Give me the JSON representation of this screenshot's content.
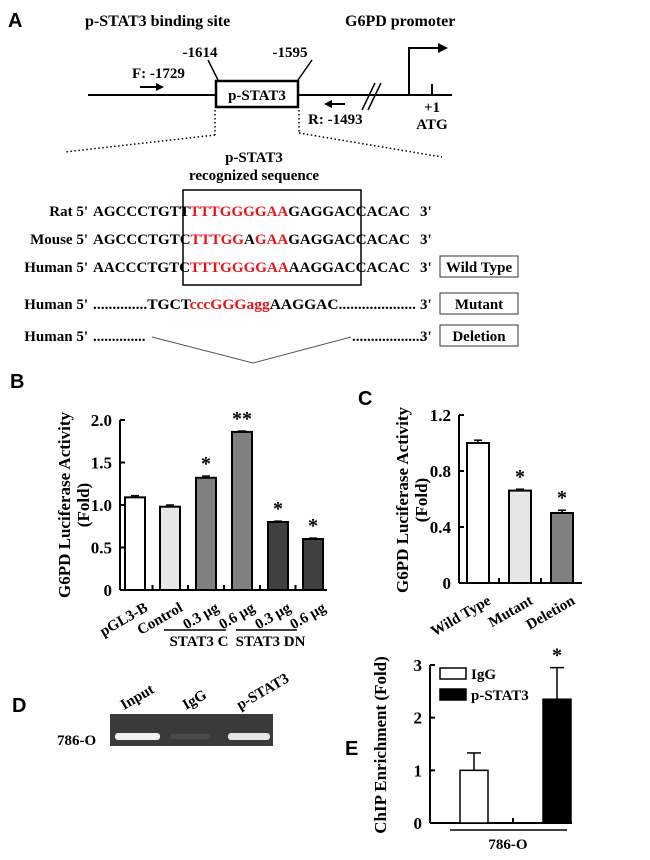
{
  "panel_a": {
    "letter": "A",
    "binding_site_title": "p-STAT3 binding site",
    "promoter_title": "G6PD promoter",
    "pos_start": "-1614",
    "pos_end": "-1595",
    "forward_primer": "F: -1729",
    "reverse_primer": "R: -1493",
    "box_label": "p-STAT3",
    "tss_label": "+1",
    "atg_label": "ATG",
    "seq_title_1": "p-STAT3",
    "seq_title_2": "recognized sequence",
    "red_color": "#e8141b",
    "rows": [
      {
        "species": "Rat 5'",
        "end": "3'",
        "segments": [
          {
            "t": "AGCCCTGTT",
            "red": false
          },
          {
            "t": "TTTGGGGAA",
            "red": true
          },
          {
            "t": "GAGGACCACAC",
            "red": false
          }
        ],
        "tag": ""
      },
      {
        "species": "Mouse 5'",
        "end": "3'",
        "segments": [
          {
            "t": "AGCCCTGTC",
            "red": false
          },
          {
            "t": "TTTGG",
            "red": true
          },
          {
            "t": "A",
            "red": false
          },
          {
            "t": "GAA",
            "red": true
          },
          {
            "t": "GAGGACCACAC",
            "red": false
          }
        ],
        "tag": ""
      },
      {
        "species": "Human 5'",
        "end": "3'",
        "segments": [
          {
            "t": "AACCCTGTC",
            "red": false
          },
          {
            "t": "TTTGGGGAA",
            "red": true
          },
          {
            "t": "AAGGACCACAC",
            "red": false
          }
        ],
        "tag": "Wild Type"
      },
      {
        "species": "Human 5'",
        "end": "3'",
        "segments": [
          {
            "t": "..............TGCT",
            "red": false
          },
          {
            "t": "cccGGGagg",
            "red": true
          },
          {
            "t": "AAGGAC....................",
            "red": false
          }
        ],
        "tag": "Mutant"
      },
      {
        "species": "Human 5'",
        "end": "3'",
        "segments": [
          {
            "t": "..............",
            "red": false
          }
        ],
        "tail": "...................",
        "tag": "Deletion"
      }
    ]
  },
  "chart_data": [
    {
      "panel": "B",
      "type": "bar",
      "ylabel_1": "G6PD Luciferase Activity",
      "ylabel_2": "(Fold)",
      "ylim": [
        0,
        2.0
      ],
      "yticks": [
        "0",
        "0.5",
        "1.0",
        "1.5",
        "2.0"
      ],
      "ytick_values": [
        0,
        0.5,
        1.0,
        1.5,
        2.0
      ],
      "categories": [
        "pGL3-B",
        "Control",
        "0.3 μg",
        "0.6 μg",
        "0.3 μg",
        "0.6 μg"
      ],
      "values": [
        1.09,
        0.98,
        1.32,
        1.86,
        0.8,
        0.6
      ],
      "errors": [
        0.02,
        0.02,
        0.02,
        0.01,
        0.01,
        0.01
      ],
      "annotations": [
        "",
        "",
        "*",
        "**",
        "*",
        "*"
      ],
      "fills": [
        "#ffffff",
        "#e6e6e6",
        "#808080",
        "#808080",
        "#404040",
        "#404040"
      ],
      "groups": [
        {
          "label": "STAT3 C",
          "members": [
            2,
            3
          ]
        },
        {
          "label": "STAT3 DN",
          "members": [
            4,
            5
          ]
        }
      ]
    },
    {
      "panel": "C",
      "type": "bar",
      "ylabel_1": "G6PD Luciferase Activity",
      "ylabel_2": "(Fold)",
      "ylim": [
        0,
        1.2
      ],
      "yticks": [
        "0",
        "0.4",
        "0.8",
        "1.2"
      ],
      "ytick_values": [
        0,
        0.4,
        0.8,
        1.2
      ],
      "categories": [
        "Wild Type",
        "Mutant",
        "Deletion"
      ],
      "values": [
        1.0,
        0.66,
        0.5
      ],
      "errors": [
        0.02,
        0.01,
        0.02
      ],
      "annotations": [
        "",
        "*",
        "*"
      ],
      "fills": [
        "#ffffff",
        "#e6e6e6",
        "#808080"
      ]
    },
    {
      "panel": "E",
      "type": "bar",
      "ylabel": "ChIP Enrichment (Fold)",
      "ylim": [
        0,
        3
      ],
      "yticks": [
        "0",
        "1",
        "2",
        "3"
      ],
      "ytick_values": [
        0,
        1,
        2,
        3
      ],
      "xlabel": "786-O",
      "series": [
        {
          "name": "IgG",
          "values": [
            1.0
          ],
          "errors": [
            0.33
          ],
          "fill": "#ffffff",
          "annotation": ""
        },
        {
          "name": "p-STAT3",
          "values": [
            2.35
          ],
          "errors": [
            0.6
          ],
          "fill": "#000000",
          "annotation": "*"
        }
      ],
      "legend": "top-left"
    }
  ],
  "panel_d": {
    "letter": "D",
    "lanes": [
      "Input",
      "IgG",
      "p-STAT3"
    ],
    "cell_line": "786-O"
  },
  "letters": {
    "b": "B",
    "c": "C",
    "e": "E"
  }
}
